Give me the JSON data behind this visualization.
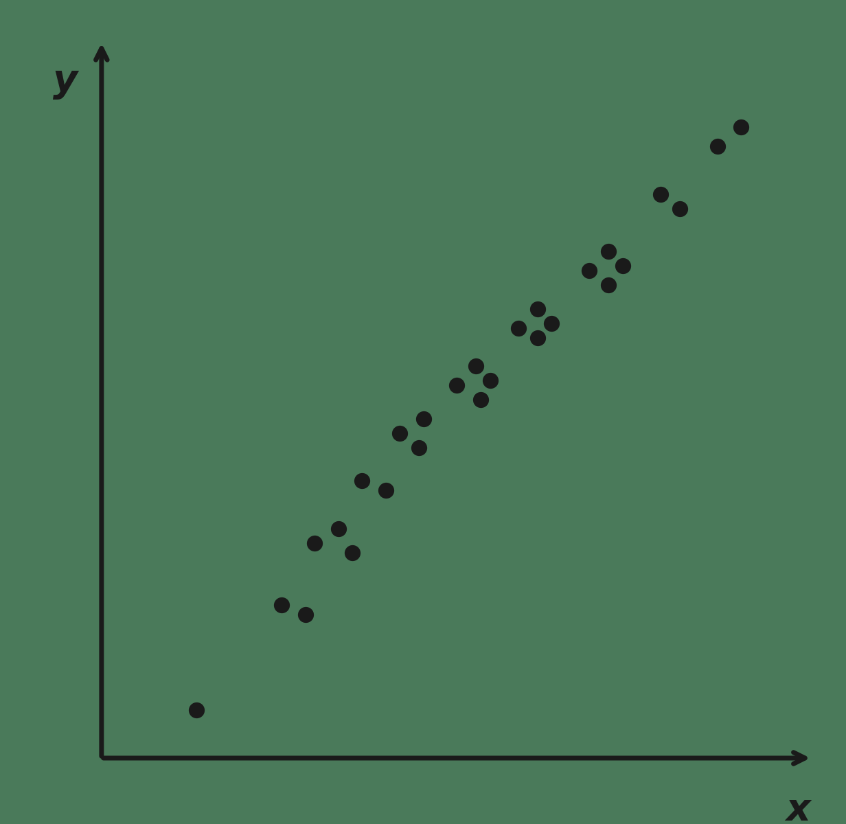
{
  "background_color": "#4a7a5a",
  "axis_color": "#1a1a1a",
  "point_color": "#1a1a1a",
  "xlabel": "x",
  "ylabel": "y",
  "points_x": [
    2.0,
    3.8,
    4.3,
    4.5,
    5.0,
    5.3,
    5.5,
    6.0,
    6.3,
    6.8,
    6.7,
    7.5,
    7.9,
    8.2,
    8.0,
    8.8,
    9.2,
    9.5,
    9.2,
    10.3,
    10.7,
    11.0,
    10.7,
    11.8,
    12.2,
    13.0,
    13.5
  ],
  "points_y": [
    1.0,
    3.2,
    3.0,
    4.5,
    4.8,
    4.3,
    5.8,
    5.6,
    6.8,
    7.1,
    6.5,
    7.8,
    8.2,
    7.9,
    7.5,
    9.0,
    9.4,
    9.1,
    8.8,
    10.2,
    10.6,
    10.3,
    9.9,
    11.8,
    11.5,
    12.8,
    13.2
  ],
  "marker_size": 280,
  "xlim": [
    0,
    15
  ],
  "ylim": [
    0,
    15
  ],
  "axis_lw": 5,
  "arrow_mutation_scale": 30,
  "label_fontsize": 40
}
